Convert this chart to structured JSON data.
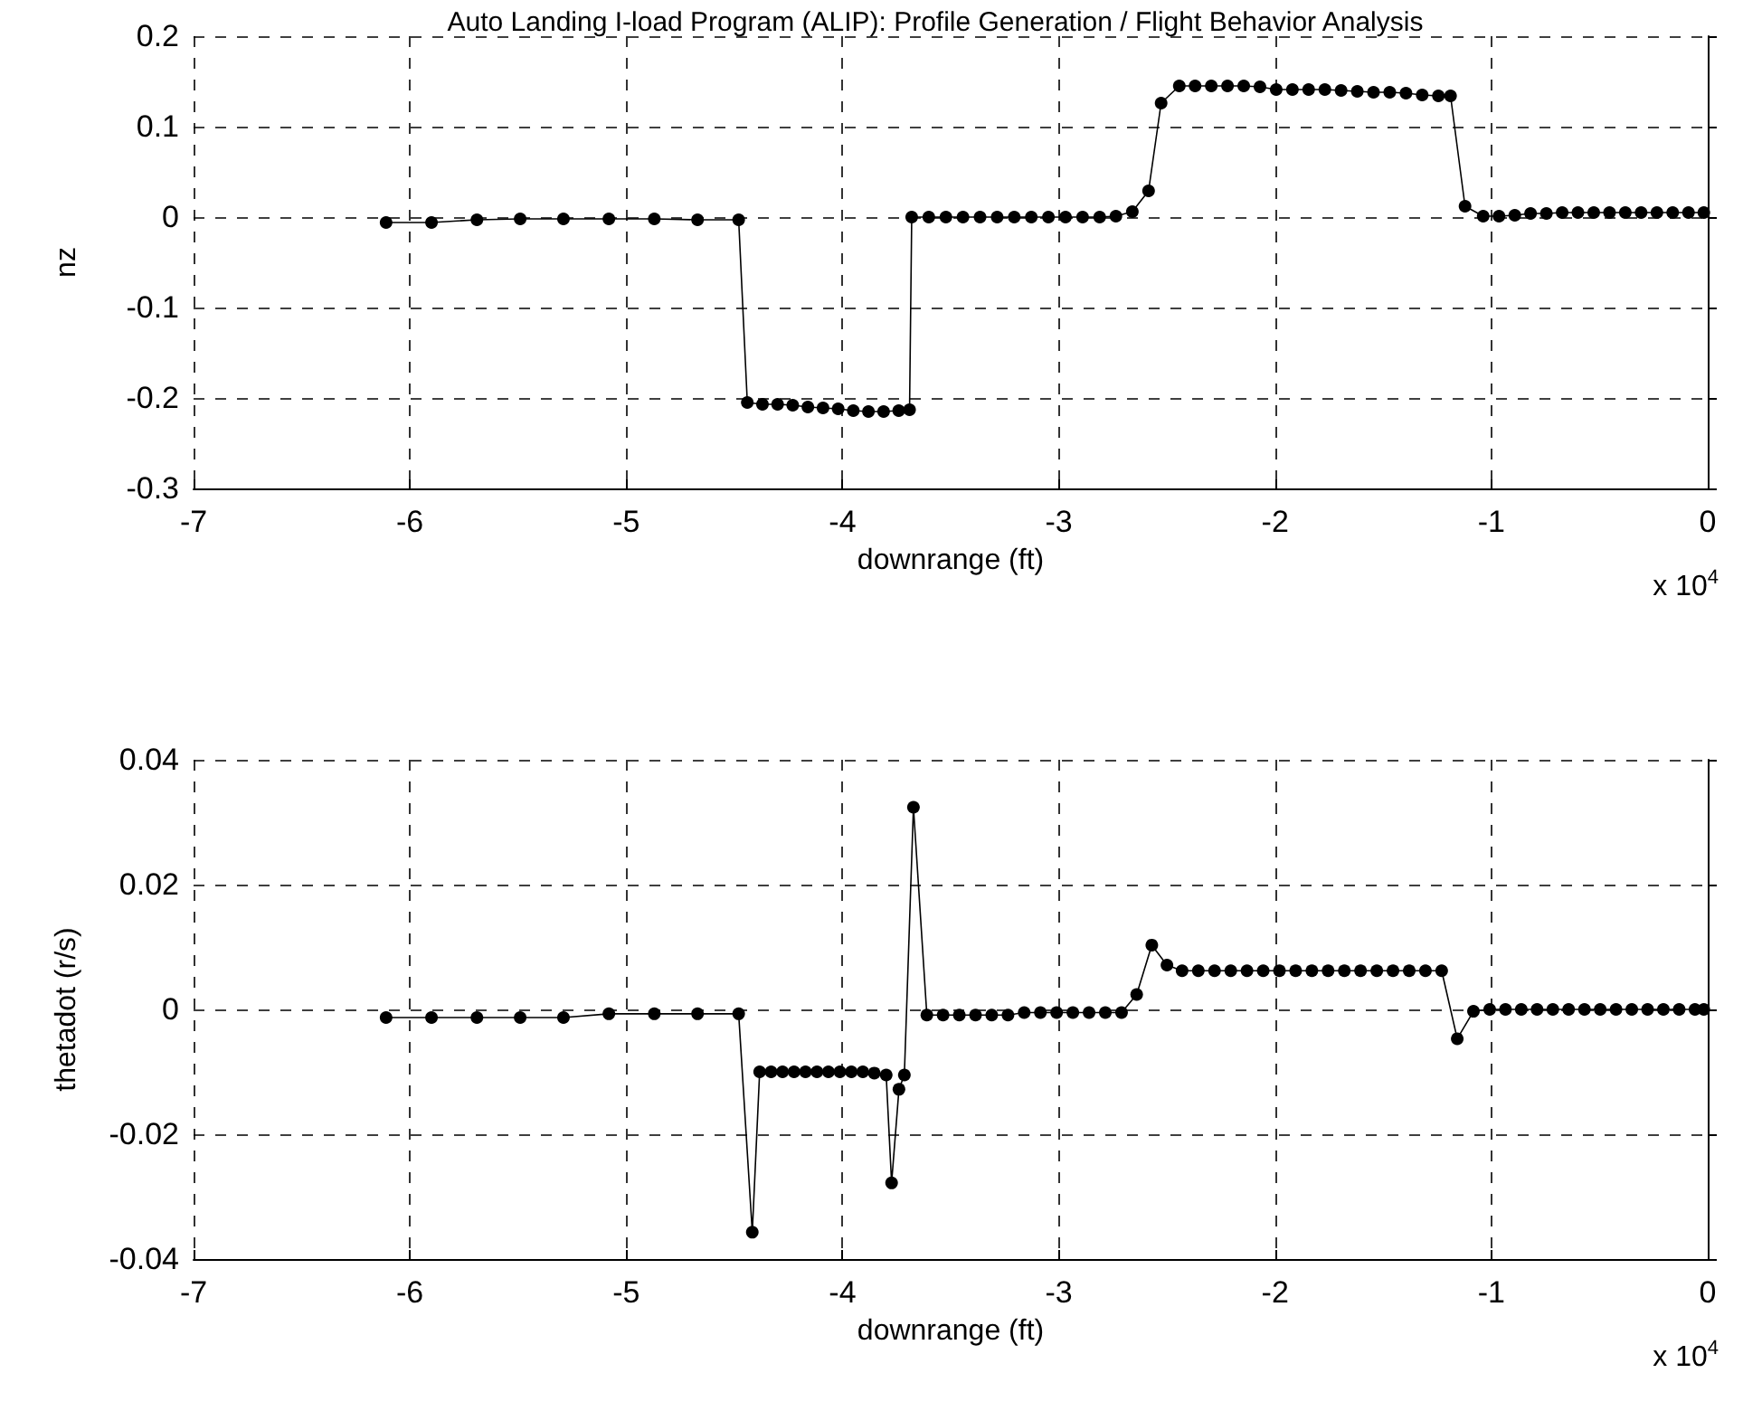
{
  "chart_data": [
    {
      "type": "line",
      "title": "Auto Landing I-load Program (ALIP): Profile Generation / Flight Behavior Analysis",
      "xlabel": "downrange (ft)",
      "ylabel": "nz",
      "x": [
        -6.11,
        -5.9,
        -5.69,
        -5.49,
        -5.29,
        -5.08,
        -4.87,
        -4.67,
        -4.48,
        -4.44,
        -4.37,
        -4.3,
        -4.23,
        -4.16,
        -4.09,
        -4.02,
        -3.95,
        -3.88,
        -3.81,
        -3.74,
        -3.69,
        -3.68,
        -3.601,
        -3.522,
        -3.443,
        -3.364,
        -3.285,
        -3.206,
        -3.127,
        -3.048,
        -2.969,
        -2.89,
        -2.811,
        -2.736,
        -2.66,
        -2.585,
        -2.527,
        -2.443,
        -2.37,
        -2.295,
        -2.22,
        -2.145,
        -2.07,
        -1.995,
        -1.92,
        -1.845,
        -1.77,
        -1.695,
        -1.62,
        -1.545,
        -1.47,
        -1.395,
        -1.32,
        -1.245,
        -1.189,
        -1.122,
        -1.038,
        -0.965,
        -0.892,
        -0.819,
        -0.746,
        -0.673,
        -0.6,
        -0.527,
        -0.454,
        -0.381,
        -0.308,
        -0.235,
        -0.162,
        -0.089,
        -0.018
      ],
      "series": [
        {
          "color": "#000000",
          "values": [
            -0.006,
            -0.006,
            -0.003,
            -0.002,
            -0.002,
            -0.002,
            -0.002,
            -0.003,
            -0.003,
            -0.205,
            -0.207,
            -0.207,
            -0.208,
            -0.21,
            -0.211,
            -0.212,
            -0.214,
            -0.215,
            -0.215,
            -0.214,
            -0.213,
            0,
            0,
            0,
            0,
            0,
            0,
            0,
            0,
            0,
            0,
            0,
            0,
            0.001,
            0.006,
            0.029,
            0.126,
            0.145,
            0.145,
            0.145,
            0.145,
            0.145,
            0.144,
            0.141,
            0.141,
            0.141,
            0.141,
            0.14,
            0.139,
            0.138,
            0.138,
            0.137,
            0.135,
            0.134,
            0.134,
            0.012,
            0.001,
            0.001,
            0.002,
            0.004,
            0.004,
            0.005,
            0.005,
            0.005,
            0.005,
            0.005,
            0.005,
            0.005,
            0.005,
            0.005,
            0.005
          ]
        }
      ],
      "xlim": [
        -7,
        0
      ],
      "ylim": [
        -0.3,
        0.2
      ],
      "xticks": [
        -7,
        -6,
        -5,
        -4,
        -3,
        -2,
        -1,
        0
      ],
      "yticks": [
        -0.3,
        -0.2,
        -0.1,
        0,
        0.1,
        0.2
      ],
      "annotations": [
        "x 10$^{4}$"
      ],
      "grid": true,
      "marker": "circle",
      "line_style": "solid"
    },
    {
      "type": "line",
      "xlabel": "downrange (ft)",
      "ylabel": "thetadot (r/s)",
      "x": [
        -6.11,
        -5.9,
        -5.69,
        -5.49,
        -5.29,
        -5.08,
        -4.87,
        -4.67,
        -4.48,
        -4.417,
        -4.383,
        -4.33,
        -4.277,
        -4.224,
        -4.171,
        -4.118,
        -4.065,
        -4.012,
        -3.959,
        -3.906,
        -3.853,
        -3.798,
        -3.773,
        -3.739,
        -3.714,
        -3.672,
        -3.61,
        -3.535,
        -3.46,
        -3.385,
        -3.31,
        -3.235,
        -3.16,
        -3.085,
        -3.01,
        -2.935,
        -2.86,
        -2.785,
        -2.71,
        -2.64,
        -2.57,
        -2.5,
        -2.43,
        -2.355,
        -2.28,
        -2.205,
        -2.13,
        -2.055,
        -1.98,
        -1.905,
        -1.83,
        -1.755,
        -1.68,
        -1.605,
        -1.53,
        -1.455,
        -1.38,
        -1.305,
        -1.23,
        -1.158,
        -1.083,
        -1.008,
        -0.935,
        -0.862,
        -0.789,
        -0.716,
        -0.643,
        -0.57,
        -0.497,
        -0.424,
        -0.351,
        -0.278,
        -0.205,
        -0.132,
        -0.059,
        -0.018
      ],
      "series": [
        {
          "color": "#000000",
          "values": [
            -0.0013,
            -0.0013,
            -0.0013,
            -0.0013,
            -0.0013,
            -0.0007,
            -0.0007,
            -0.0007,
            -0.0007,
            -0.0357,
            -0.01,
            -0.01,
            -0.01,
            -0.01,
            -0.01,
            -0.01,
            -0.01,
            -0.01,
            -0.01,
            -0.01,
            -0.0102,
            -0.0105,
            -0.0278,
            -0.0128,
            -0.0105,
            0.0324,
            -0.0009,
            -0.0009,
            -0.0009,
            -0.0009,
            -0.0009,
            -0.0009,
            -0.0005,
            -0.0005,
            -0.0005,
            -0.0005,
            -0.0005,
            -0.0005,
            -0.0005,
            0.0024,
            0.0103,
            0.0071,
            0.0062,
            0.0062,
            0.0062,
            0.0062,
            0.0062,
            0.0062,
            0.0062,
            0.0062,
            0.0062,
            0.0062,
            0.0062,
            0.0062,
            0.0062,
            0.0062,
            0.0062,
            0.0062,
            0.0062,
            -0.0047,
            -0.0003,
            0,
            0,
            0,
            0,
            0,
            0,
            0,
            0,
            0,
            0,
            0,
            0,
            0,
            0,
            0
          ]
        }
      ],
      "xlim": [
        -7,
        0
      ],
      "ylim": [
        -0.04,
        0.04
      ],
      "xticks": [
        -7,
        -6,
        -5,
        -4,
        -3,
        -2,
        -1,
        0
      ],
      "yticks": [
        -0.04,
        -0.02,
        0,
        0.02,
        0.04
      ],
      "annotations": [
        "x 10$^{4}$"
      ],
      "grid": true,
      "marker": "circle",
      "line_style": "solid"
    }
  ]
}
